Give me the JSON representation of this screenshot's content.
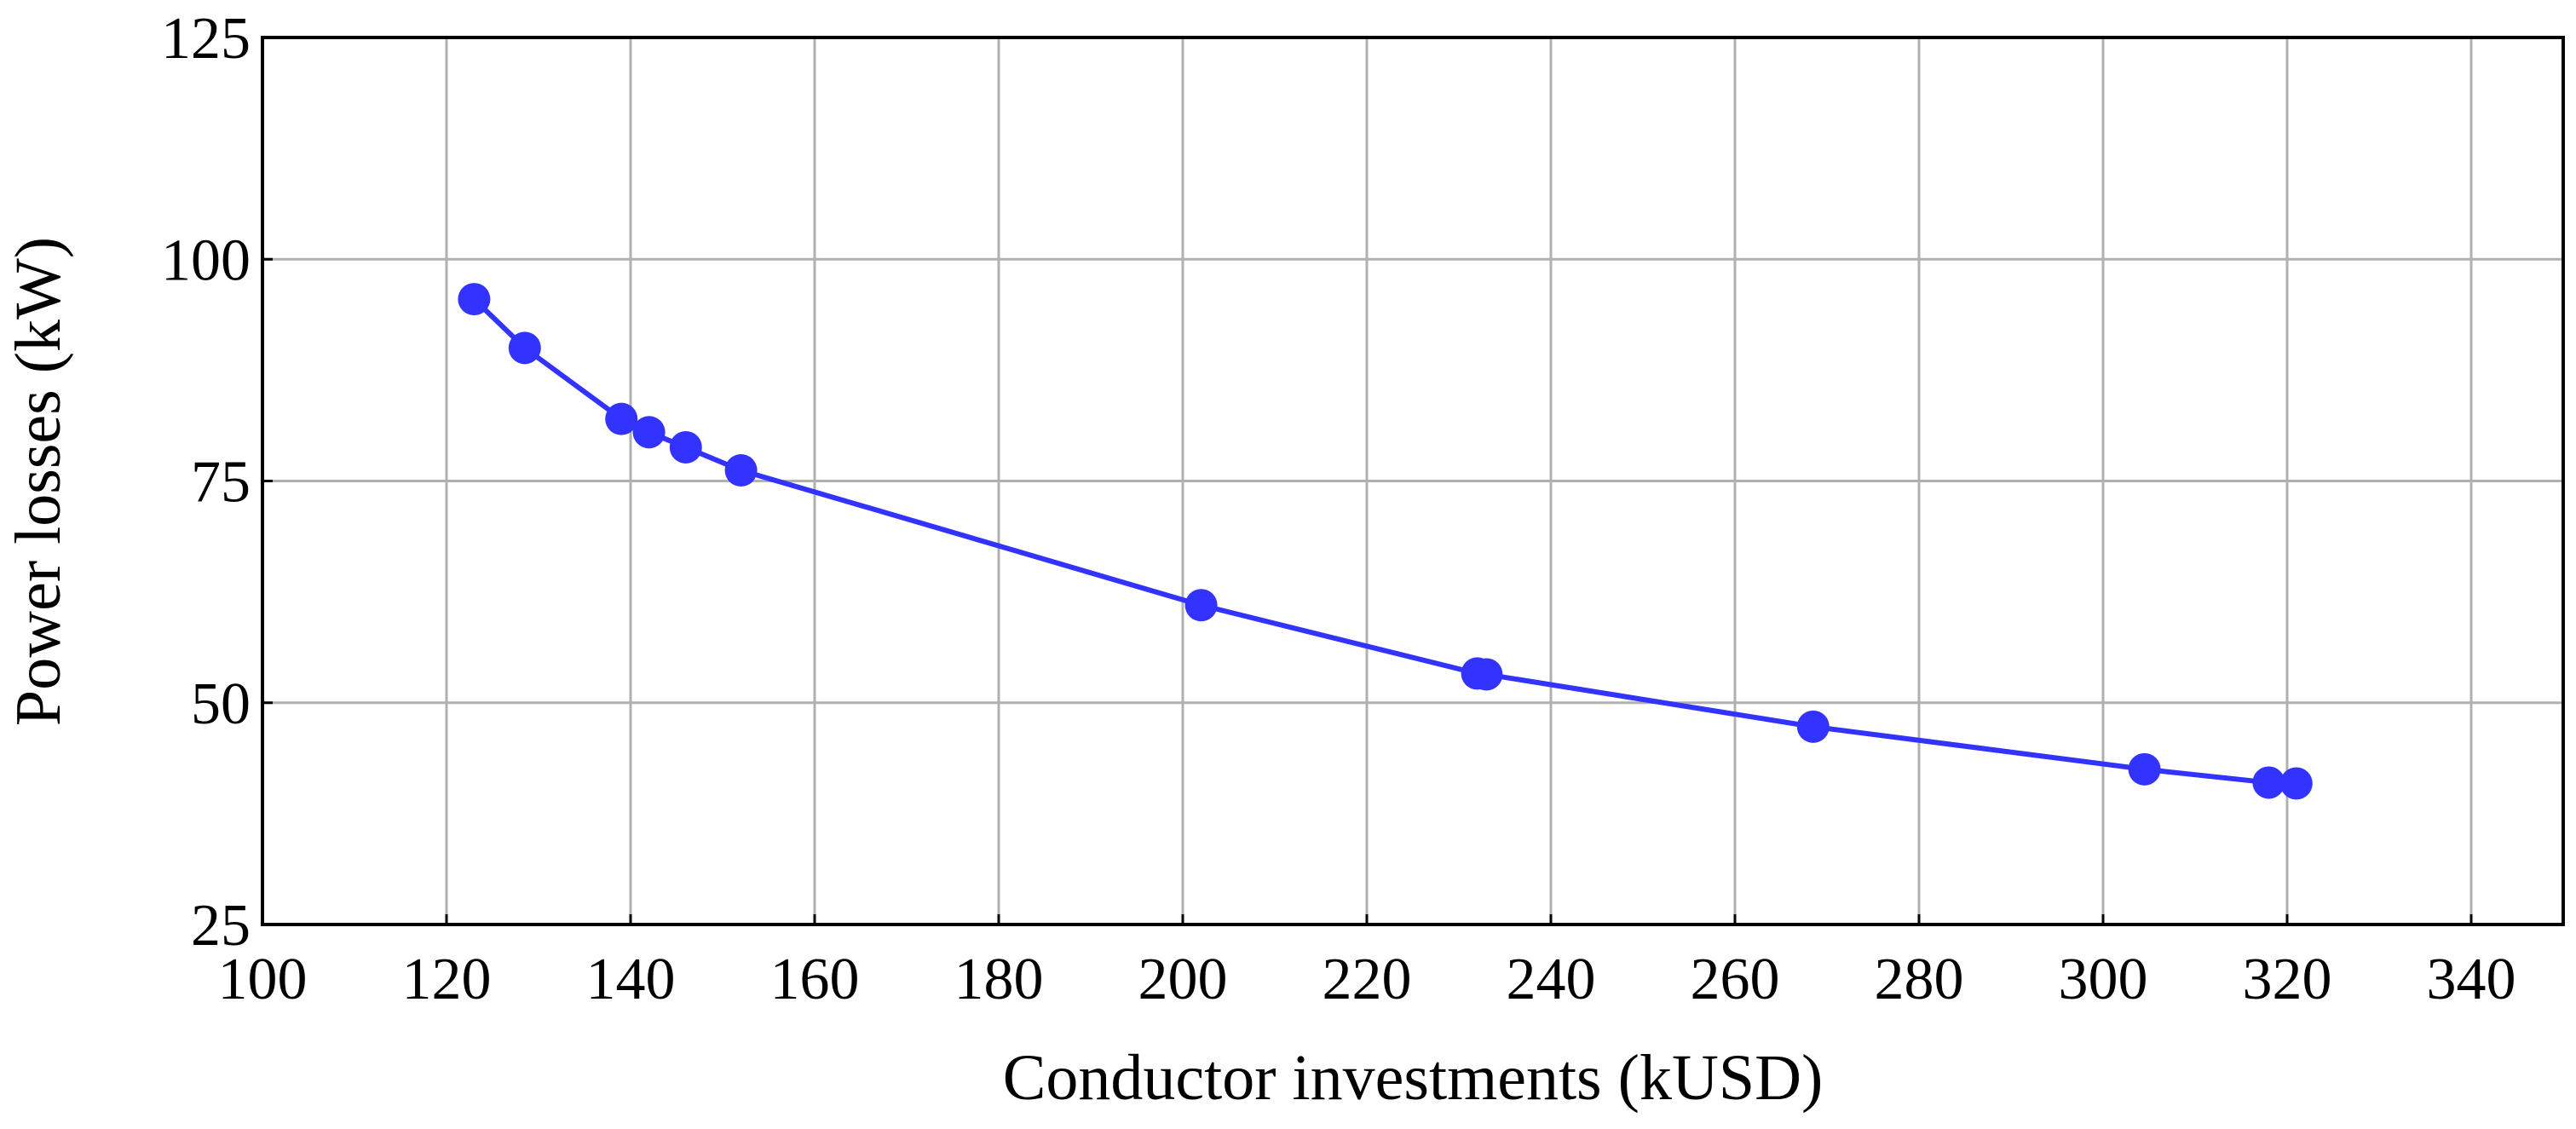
{
  "chart_data": {
    "type": "line",
    "x_label": "Conductor investments (kUSD)",
    "y_label": "Power losses (kW)",
    "series": [
      {
        "color": "#3333ff",
        "x": [
          123,
          128.5,
          139,
          142,
          146,
          152,
          202,
          232,
          233,
          268.5,
          304.5,
          318,
          321
        ],
        "values": [
          95.5,
          90,
          82,
          80.5,
          78.8,
          76.2,
          61,
          53.3,
          53.2,
          47.3,
          42.5,
          41,
          40.9
        ]
      }
    ],
    "xlim": [
      100,
      350
    ],
    "xticks": [
      100,
      120,
      140,
      160,
      180,
      200,
      220,
      240,
      260,
      280,
      300,
      320,
      340
    ],
    "ylim": [
      25,
      125
    ],
    "yticks": [
      25,
      50,
      75,
      100,
      125
    ],
    "grid": true,
    "markers": true
  }
}
